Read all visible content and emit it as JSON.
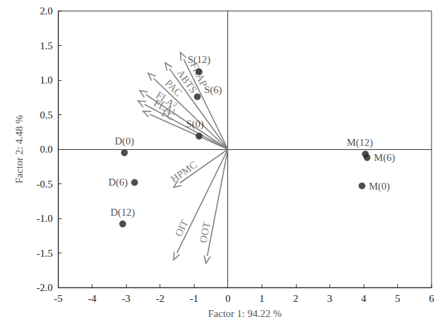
{
  "chart_data": {
    "type": "biplot",
    "x_label": "Factor 1: 94.22 %",
    "y_label": "Factor 2: 4.48 %",
    "xlim": [
      -5,
      6
    ],
    "xticks": [
      -5,
      -4,
      -3,
      -2,
      -1,
      0,
      1,
      2,
      3,
      4,
      5,
      6
    ],
    "ylim": [
      -2,
      2
    ],
    "yticks": [
      {
        "value": -2,
        "label": "-2.0"
      },
      {
        "value": -1.5,
        "label": "-1.5"
      },
      {
        "value": -1,
        "label": "-1.0"
      },
      {
        "value": -0.5,
        "label": "-0.5"
      },
      {
        "value": 0,
        "label": "0.0"
      },
      {
        "value": 0.5,
        "label": "0.5"
      },
      {
        "value": 1,
        "label": "1.0"
      },
      {
        "value": 1.5,
        "label": "1.5"
      },
      {
        "value": 2,
        "label": "2.0"
      }
    ],
    "grid": false,
    "origin": [
      0,
      0
    ],
    "points": {
      "names": [
        "D(0)",
        "D(6)",
        "D(12)",
        "S(0)",
        "S(6)",
        "S(12)",
        "M(0)",
        "M(6)",
        "M(12)"
      ],
      "x": [
        -3.05,
        -2.75,
        -3.1,
        -0.85,
        -0.9,
        -0.85,
        3.95,
        4.1,
        4.05
      ],
      "y": [
        -0.05,
        -0.48,
        -1.08,
        0.19,
        0.76,
        1.12,
        -0.53,
        -0.12,
        -0.07
      ],
      "color": "#222222",
      "marker": "circle"
    },
    "vectors": {
      "names": [
        "FRAP",
        "ABTS",
        "PAC",
        "FLA²",
        "FLA¹",
        "FC",
        "HPMC",
        "OIT",
        "OOT"
      ],
      "x": [
        -1.4,
        -1.85,
        -2.35,
        -2.6,
        -2.65,
        -2.5,
        -1.6,
        -1.6,
        -0.65
      ],
      "y": [
        1.4,
        1.25,
        1.1,
        0.85,
        0.7,
        0.55,
        -0.55,
        -1.6,
        -1.65
      ],
      "color": "#808080"
    }
  }
}
